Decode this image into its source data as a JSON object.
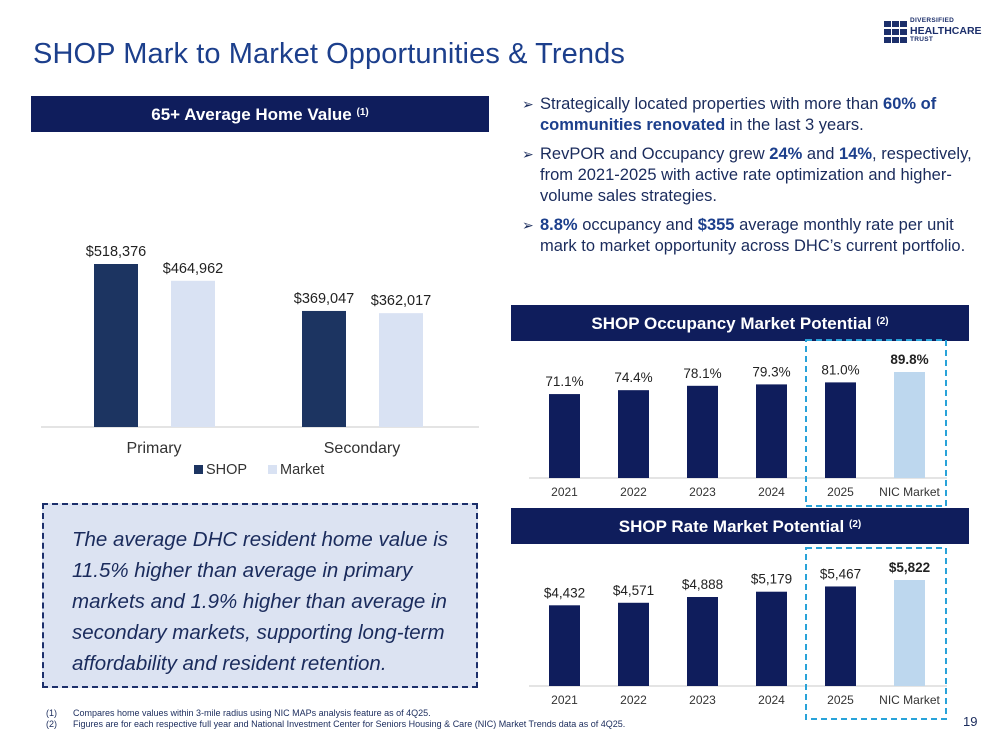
{
  "title": "SHOP Mark to Market Opportunities & Trends",
  "logo": {
    "line1": "DIVERSIFIED",
    "line2": "HEALTHCARE",
    "line3": "TRUST"
  },
  "home_value_header": {
    "text": "65+ Average Home Value",
    "note": "(1)"
  },
  "bullets": [
    {
      "pre": "Strategically located properties with more than ",
      "bold": "60% of communities renovated",
      "post": " in the last 3 years."
    },
    {
      "pre": "RevPOR and Occupancy grew ",
      "bold": "24%",
      "mid": " and ",
      "bold2": "14%",
      "post": ", respectively, from 2021-2025 with active rate optimization and higher-volume sales strategies."
    },
    {
      "bold": "8.8%",
      "mid": " occupancy and ",
      "bold2": "$355",
      "post": " average monthly rate per unit mark to market opportunity across DHC’s current portfolio."
    }
  ],
  "occupancy_header": {
    "text": "SHOP Occupancy Market Potential",
    "note": "(2)"
  },
  "rate_header": {
    "text": "SHOP Rate Market Potential",
    "note": "(2)"
  },
  "callout": {
    "text": "The average DHC resident home value is 11.5% higher than average in primary markets and 1.9% higher than average in secondary markets, supporting long-term affordability and resident retention."
  },
  "footnotes": [
    {
      "num": "(1)",
      "text": "Compares home values within 3-mile radius using NIC MAPs analysis feature as of 4Q25."
    },
    {
      "num": "(2)",
      "text": "Figures are for each respective full year and National Investment Center for Seniors Housing & Care (NIC) Market Trends data as of 4Q25."
    }
  ],
  "page_number": "19",
  "colors": {
    "navy": "#1c3461",
    "light": "#d9e2f3",
    "dark_bar": "#0f1d5c",
    "highlight": "#bdd7ee",
    "dashed": "#29a3d9"
  },
  "chart_data": [
    {
      "type": "bar",
      "title": "65+ Average Home Value",
      "categories": [
        "Primary",
        "Secondary"
      ],
      "series": [
        {
          "name": "SHOP",
          "values": [
            518376,
            369047
          ],
          "labels": [
            "$518,376",
            "$369,047"
          ]
        },
        {
          "name": "Market",
          "values": [
            464962,
            362017
          ],
          "labels": [
            "$464,962",
            "$362,017"
          ]
        }
      ],
      "legend": "bottom",
      "ylim": [
        0,
        550000
      ]
    },
    {
      "type": "bar",
      "title": "SHOP Occupancy Market Potential",
      "categories": [
        "2021",
        "2022",
        "2023",
        "2024",
        "2025",
        "NIC Market"
      ],
      "values": [
        71.1,
        74.4,
        78.1,
        79.3,
        81.0,
        89.8
      ],
      "labels": [
        "71.1%",
        "74.4%",
        "78.1%",
        "79.3%",
        "81.0%",
        "89.8%"
      ],
      "highlight": "NIC Market",
      "ylim": [
        0,
        100
      ]
    },
    {
      "type": "bar",
      "title": "SHOP Rate Market Potential",
      "categories": [
        "2021",
        "2022",
        "2023",
        "2024",
        "2025",
        "NIC Market"
      ],
      "values": [
        4432,
        4571,
        4888,
        5179,
        5467,
        5822
      ],
      "labels": [
        "$4,432",
        "$4,571",
        "$4,888",
        "$5,179",
        "$5,467",
        "$5,822"
      ],
      "highlight": "NIC Market",
      "ylim": [
        0,
        6500
      ]
    }
  ]
}
